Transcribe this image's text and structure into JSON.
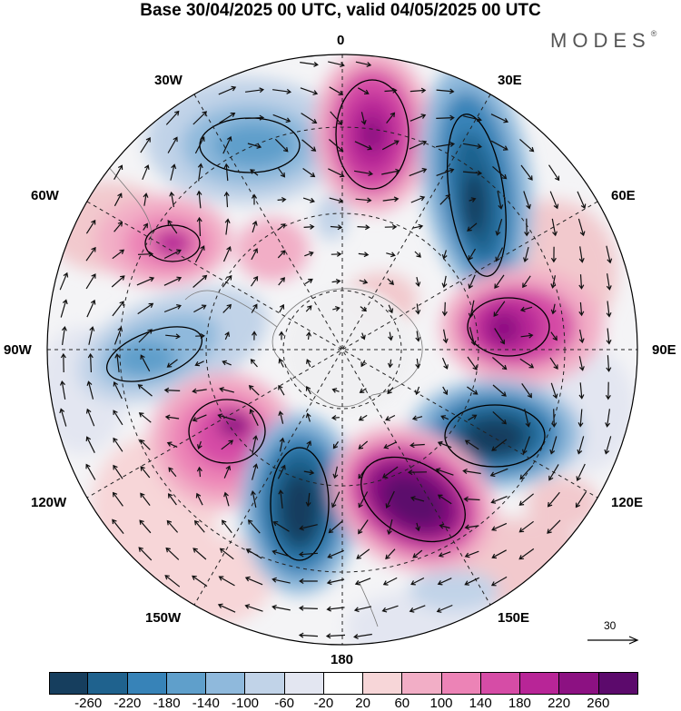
{
  "title": "Base 30/04/2025 00 UTC, valid 04/05/2025 00 UTC",
  "brand": "MODES",
  "brand_mark": "®",
  "longitude_labels": {
    "lon_0": "0",
    "lon_30e": "30E",
    "lon_60e": "60E",
    "lon_90e": "90E",
    "lon_120e": "120E",
    "lon_150e": "150E",
    "lon_180": "180",
    "lon_150w": "150W",
    "lon_120w": "120W",
    "lon_90w": "90W",
    "lon_60w": "60W",
    "lon_30w": "30W"
  },
  "reference_vector": {
    "label": "30",
    "icon": "right-arrow-icon"
  },
  "colorbar": {
    "ticks": [
      "-260",
      "-220",
      "-180",
      "-140",
      "-100",
      "-60",
      "-20",
      "20",
      "60",
      "100",
      "140",
      "180",
      "220",
      "260"
    ],
    "colors": [
      "#163e5e",
      "#1f628e",
      "#3783b8",
      "#5f9fcb",
      "#8fb9dc",
      "#c1d3e8",
      "#e3e6f1",
      "#ffffff",
      "#f7d6d8",
      "#f2aec6",
      "#ec83b6",
      "#d64ca6",
      "#b82597",
      "#8c1182",
      "#5c0a6c"
    ]
  }
}
